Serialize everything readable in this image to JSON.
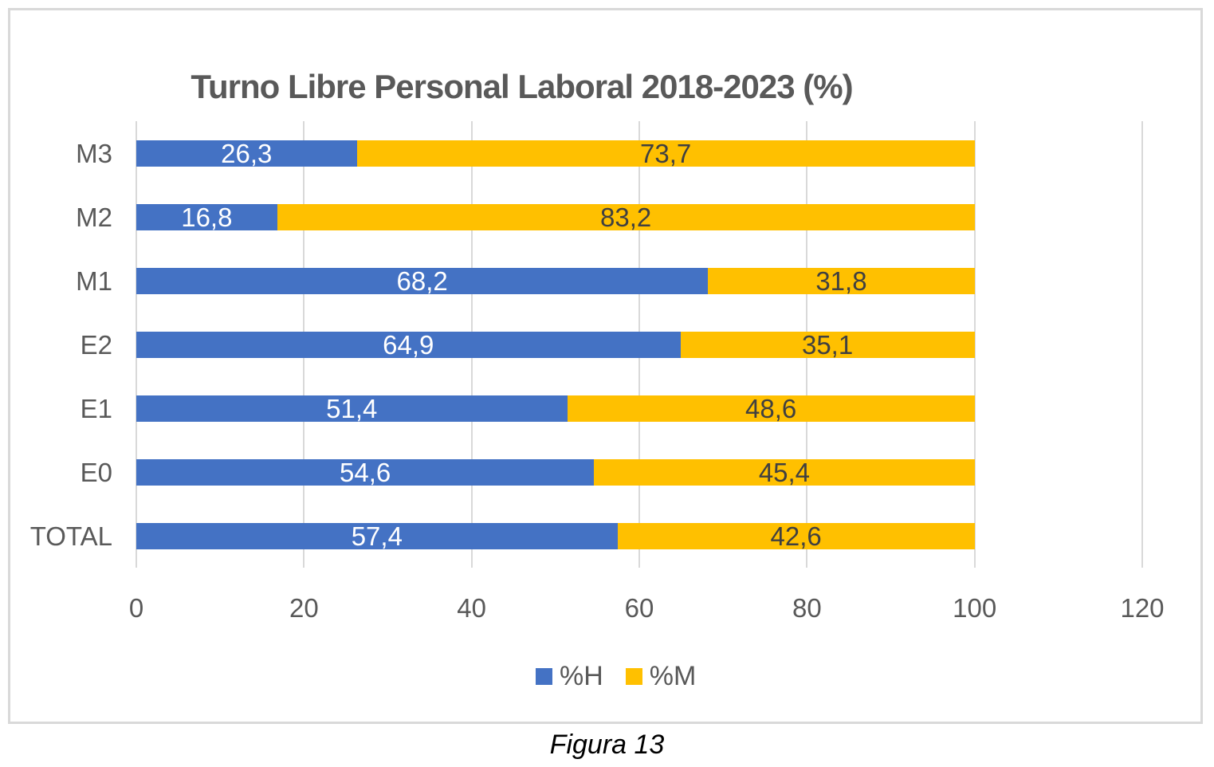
{
  "figure": {
    "caption": "Figura 13"
  },
  "chart_data": {
    "type": "bar",
    "orientation": "horizontal",
    "stacked": true,
    "title": "Turno Libre Personal Laboral 2018-2023 (%)",
    "categories": [
      "M3",
      "M2",
      "M1",
      "E2",
      "E1",
      "E0",
      "TOTAL"
    ],
    "series": [
      {
        "name": "%H",
        "color": "#4472C4",
        "label_color": "#FFFFFF",
        "values": [
          26.3,
          16.8,
          68.2,
          64.9,
          51.4,
          54.6,
          57.4
        ],
        "labels": [
          "26,3",
          "16,8",
          "68,2",
          "64,9",
          "51,4",
          "54,6",
          "57,4"
        ]
      },
      {
        "name": "%M",
        "color": "#FFC000",
        "label_color": "#404040",
        "values": [
          73.7,
          83.2,
          31.8,
          35.1,
          48.6,
          45.4,
          42.6
        ],
        "labels": [
          "73,7",
          "83,2",
          "31,8",
          "35,1",
          "48,6",
          "45,4",
          "42,6"
        ]
      }
    ],
    "xlim": [
      0,
      120
    ],
    "x_ticks": [
      0,
      20,
      40,
      60,
      80,
      100,
      120
    ],
    "x_tick_labels": [
      "0",
      "20",
      "40",
      "60",
      "80",
      "100",
      "120"
    ],
    "grid": true,
    "legend_position": "bottom",
    "colors": {
      "title_text": "#595959",
      "axis_text": "#595959",
      "gridline": "#D9D9D9",
      "frame_border": "#D9D9D9",
      "caption_text": "#000000"
    }
  }
}
